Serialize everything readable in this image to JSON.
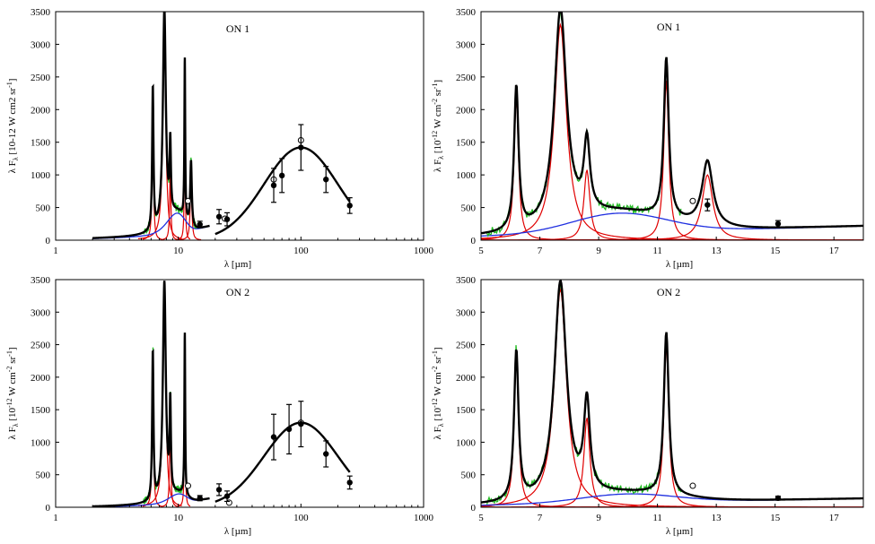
{
  "figure": {
    "xlabel_log": "λ [µm]",
    "xlabel_lin": "λ [µm]"
  },
  "chart_data": [
    {
      "id": "p1",
      "type": "line",
      "title": "ON 1",
      "xscale": "log",
      "xlim": [
        1,
        1000
      ],
      "ylim": [
        0,
        3500
      ],
      "xticks": [
        1,
        10,
        100,
        1000
      ],
      "xtick_labels": [
        "1",
        "10",
        "100",
        "1000"
      ],
      "yticks": [
        0,
        500,
        1000,
        1500,
        2000,
        2500,
        3000,
        3500
      ],
      "ylabel_main": "λ F",
      "ylabel_sub": "λ",
      "ylabel_unit": " [10-12 W cm2 sr",
      "ylabel_sup": "-1",
      "ylabel_end": "]",
      "lorentz": [
        {
          "c": 6.2,
          "a": 2200,
          "g": 0.09
        },
        {
          "c": 7.7,
          "a": 3300,
          "g": 0.25
        },
        {
          "c": 8.6,
          "a": 1080,
          "g": 0.12
        },
        {
          "c": 11.3,
          "a": 2450,
          "g": 0.1
        },
        {
          "c": 12.7,
          "a": 1000,
          "g": 0.22
        }
      ],
      "continuum": {
        "peak": 330,
        "center": 9.7,
        "width": 1.6,
        "base": 60,
        "slope": 12,
        "x0": 2,
        "x1": 18
      },
      "dust": {
        "peak": 1420,
        "center": 100,
        "sigma_dex": 0.3,
        "x0": 20,
        "x1": 250
      },
      "spectrum_range": [
        5.2,
        14
      ],
      "points_filled": [
        {
          "x": 15,
          "y": 240,
          "err": 50
        },
        {
          "x": 21.5,
          "y": 360,
          "err": 110
        },
        {
          "x": 25,
          "y": 320,
          "err": 100
        },
        {
          "x": 60,
          "y": 840,
          "err": 260
        },
        {
          "x": 70,
          "y": 990,
          "err": 260
        },
        {
          "x": 100,
          "y": 1420,
          "err": 350
        },
        {
          "x": 160,
          "y": 930,
          "err": 200
        },
        {
          "x": 250,
          "y": 530,
          "err": 120
        }
      ],
      "points_open": [
        {
          "x": 12,
          "y": 600
        },
        {
          "x": 24,
          "y": 330
        },
        {
          "x": 60,
          "y": 930
        },
        {
          "x": 100,
          "y": 1530
        }
      ]
    },
    {
      "id": "p2",
      "type": "line",
      "title": "ON 1",
      "xscale": "linear",
      "xlim": [
        5,
        18
      ],
      "ylim": [
        0,
        3500
      ],
      "xticks": [
        5,
        7,
        9,
        11,
        13,
        15,
        17
      ],
      "xtick_labels": [
        "5",
        "7",
        "9",
        "11",
        "13",
        "15",
        "17"
      ],
      "yticks": [
        0,
        500,
        1000,
        1500,
        2000,
        2500,
        3000,
        3500
      ],
      "ylabel_main": "λ F",
      "ylabel_sub": "λ",
      "ylabel_unit": " [10",
      "ylabel_sup": "-12",
      "ylabel_end": " W cm",
      "ylabel_sup2": "-2",
      "ylabel_end2": " sr",
      "ylabel_sup3": "-1",
      "ylabel_end3": "]",
      "lorentz": [
        {
          "c": 6.2,
          "a": 2200,
          "g": 0.09
        },
        {
          "c": 7.7,
          "a": 3300,
          "g": 0.25
        },
        {
          "c": 8.6,
          "a": 1080,
          "g": 0.12
        },
        {
          "c": 11.3,
          "a": 2450,
          "g": 0.1
        },
        {
          "c": 12.7,
          "a": 1000,
          "g": 0.22
        }
      ],
      "continuum": {
        "peak": 330,
        "center": 9.7,
        "width": 1.6,
        "base": 60,
        "slope": 12,
        "x0": 5,
        "x1": 18
      },
      "spectrum_range": [
        5.2,
        11.8
      ],
      "points_filled": [
        {
          "x": 12.7,
          "y": 540,
          "err": 90
        },
        {
          "x": 15.1,
          "y": 250,
          "err": 50
        }
      ],
      "points_open": [
        {
          "x": 12.2,
          "y": 600
        }
      ]
    },
    {
      "id": "p3",
      "type": "line",
      "title": "ON 2",
      "xscale": "log",
      "xlim": [
        1,
        1000
      ],
      "ylim": [
        0,
        3500
      ],
      "xticks": [
        1,
        10,
        100,
        1000
      ],
      "xtick_labels": [
        "1",
        "10",
        "100",
        "1000"
      ],
      "yticks": [
        0,
        500,
        1000,
        1500,
        2000,
        2500,
        3000,
        3500
      ],
      "ylabel_main": "λ F",
      "ylabel_sub": "λ",
      "ylabel_unit": " [10",
      "ylabel_sup": "-12",
      "ylabel_end": " W cm",
      "ylabel_sup2": "-2",
      "ylabel_end2": " sr",
      "ylabel_sup3": "-1",
      "ylabel_end3": "]",
      "lorentz": [
        {
          "c": 6.2,
          "a": 2300,
          "g": 0.09
        },
        {
          "c": 7.7,
          "a": 3350,
          "g": 0.25
        },
        {
          "c": 8.6,
          "a": 1380,
          "g": 0.12
        },
        {
          "c": 11.3,
          "a": 2500,
          "g": 0.1
        }
      ],
      "continuum": {
        "peak": 150,
        "center": 10,
        "width": 1.6,
        "base": 30,
        "slope": 8,
        "x0": 2,
        "x1": 18
      },
      "dust": {
        "peak": 1300,
        "center": 100,
        "sigma_dex": 0.3,
        "x0": 20,
        "x1": 250
      },
      "spectrum_range": [
        5.2,
        12
      ],
      "points_filled": [
        {
          "x": 15,
          "y": 140,
          "err": 40
        },
        {
          "x": 21.5,
          "y": 270,
          "err": 90
        },
        {
          "x": 25,
          "y": 170,
          "err": 80
        },
        {
          "x": 60,
          "y": 1080,
          "err": 350
        },
        {
          "x": 80,
          "y": 1200,
          "err": 380
        },
        {
          "x": 100,
          "y": 1280,
          "err": 350
        },
        {
          "x": 160,
          "y": 820,
          "err": 200
        },
        {
          "x": 250,
          "y": 380,
          "err": 100
        }
      ],
      "points_open": [
        {
          "x": 12,
          "y": 330
        },
        {
          "x": 26,
          "y": 70
        },
        {
          "x": 100,
          "y": 1300
        }
      ]
    },
    {
      "id": "p4",
      "type": "line",
      "title": "ON 2",
      "xscale": "linear",
      "xlim": [
        5,
        18
      ],
      "ylim": [
        0,
        3500
      ],
      "xticks": [
        5,
        7,
        9,
        11,
        13,
        15,
        17
      ],
      "xtick_labels": [
        "5",
        "7",
        "9",
        "11",
        "13",
        "15",
        "17"
      ],
      "yticks": [
        0,
        500,
        1000,
        1500,
        2000,
        2500,
        3000,
        3500
      ],
      "ylabel_main": "λ F",
      "ylabel_sub": "λ",
      "ylabel_unit": " [10",
      "ylabel_sup": "-12",
      "ylabel_end": " W cm",
      "ylabel_sup2": "-2",
      "ylabel_end2": " sr",
      "ylabel_sup3": "-1",
      "ylabel_end3": "]",
      "lorentz": [
        {
          "c": 6.2,
          "a": 2300,
          "g": 0.09
        },
        {
          "c": 7.7,
          "a": 3350,
          "g": 0.25
        },
        {
          "c": 8.6,
          "a": 1380,
          "g": 0.12
        },
        {
          "c": 11.3,
          "a": 2500,
          "g": 0.1
        }
      ],
      "continuum": {
        "peak": 150,
        "center": 10,
        "width": 1.6,
        "base": 30,
        "slope": 8,
        "x0": 5,
        "x1": 18
      },
      "spectrum_range": [
        5.2,
        11.8
      ],
      "points_filled": [
        {
          "x": 15.1,
          "y": 140,
          "err": 30
        }
      ],
      "points_open": [
        {
          "x": 12.2,
          "y": 330
        }
      ]
    }
  ],
  "colors": {
    "model": "#000000",
    "pah": "#e00000",
    "continuum": "#2030e0",
    "spectrum": "#22bb22"
  }
}
